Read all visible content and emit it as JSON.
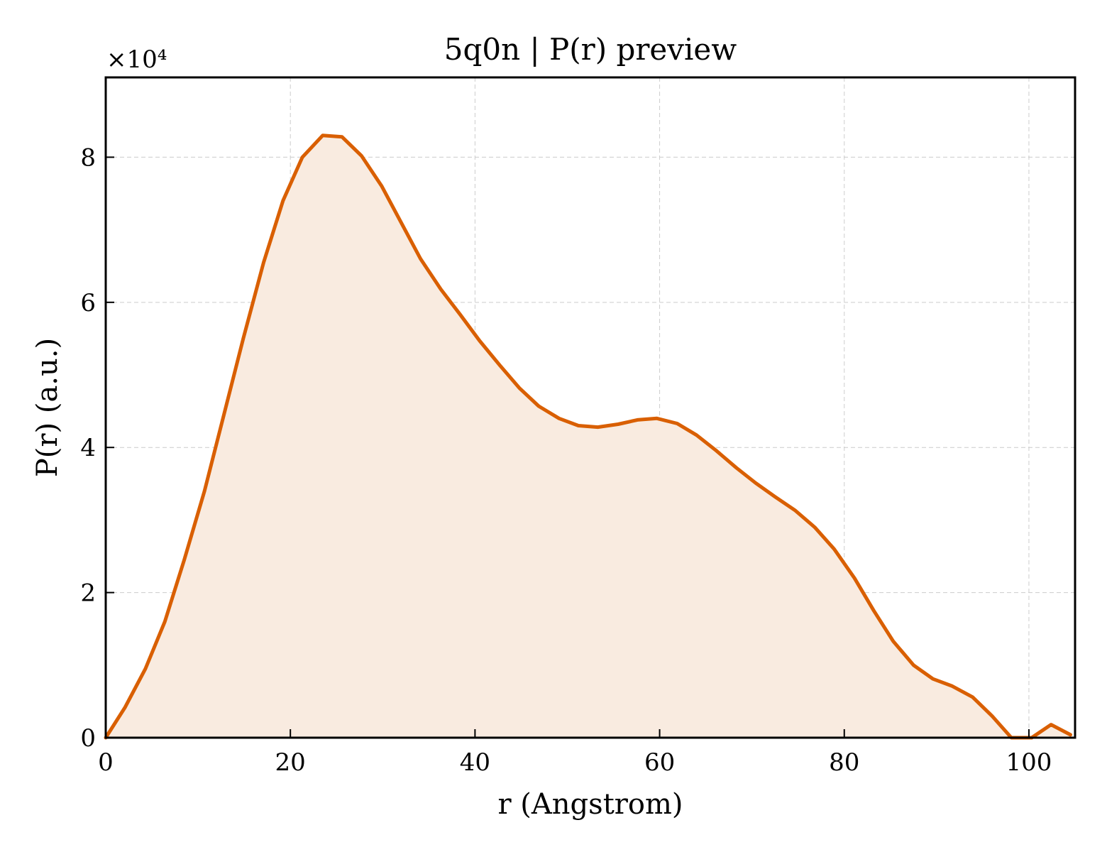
{
  "chart_data": {
    "type": "area",
    "title": "5q0n | P(r) preview",
    "xlabel": "r (Angstrom)",
    "ylabel": "P(r) (a.u.)",
    "y_multiplier": "×10⁴",
    "xlim": [
      0,
      105
    ],
    "ylim": [
      0,
      9.1
    ],
    "y_scale_factor": 10000,
    "x_ticks": [
      0,
      20,
      40,
      60,
      80,
      100
    ],
    "y_ticks": [
      0,
      2,
      4,
      6,
      8
    ],
    "grid": true,
    "line_color": "#d95f02",
    "fill_color": "#f9ebe0",
    "series": [
      {
        "x": [
          0,
          2.1,
          4.3,
          6.4,
          8.5,
          10.7,
          12.8,
          14.9,
          17.1,
          19.2,
          21.3,
          23.5,
          25.6,
          27.7,
          29.9,
          32.0,
          34.1,
          36.3,
          38.4,
          40.5,
          42.7,
          44.8,
          46.9,
          49.1,
          51.2,
          53.3,
          55.5,
          57.6,
          59.7,
          61.9,
          64.0,
          66.1,
          68.3,
          70.4,
          72.5,
          74.7,
          76.8,
          78.9,
          81.1,
          83.2,
          85.3,
          87.5,
          89.6,
          91.7,
          93.9,
          96.0,
          98.1,
          100.3,
          102.4,
          104.5
        ],
        "values": [
          0,
          0.42,
          0.95,
          1.6,
          2.45,
          3.4,
          4.45,
          5.5,
          6.55,
          7.4,
          8.0,
          8.3,
          8.28,
          8.02,
          7.6,
          7.1,
          6.6,
          6.18,
          5.83,
          5.47,
          5.13,
          4.82,
          4.57,
          4.4,
          4.3,
          4.28,
          4.32,
          4.38,
          4.4,
          4.33,
          4.17,
          3.96,
          3.72,
          3.51,
          3.32,
          3.13,
          2.9,
          2.6,
          2.2,
          1.75,
          1.33,
          1.0,
          0.81,
          0.71,
          0.56,
          0.3,
          0.0,
          0.0,
          0.18,
          0.04
        ]
      }
    ]
  }
}
